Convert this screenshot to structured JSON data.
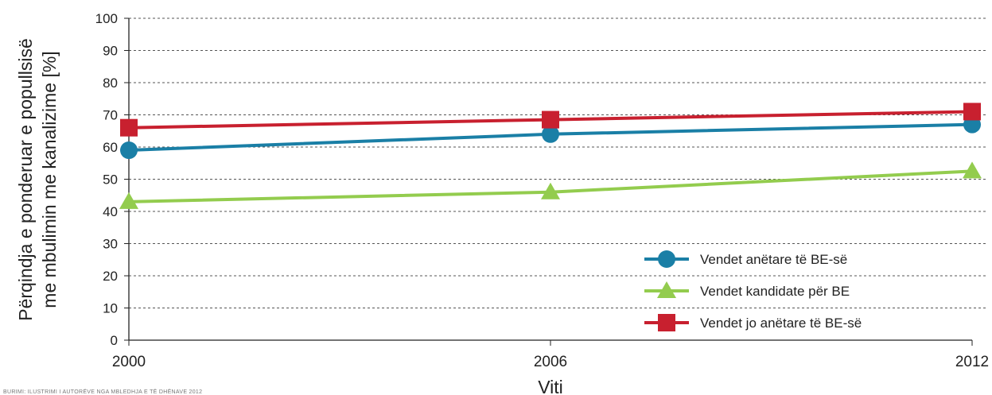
{
  "chart_data": {
    "type": "line",
    "xlabel": "Viti",
    "ylabel_line1": "Përqindja e ponderuar e popullsisë",
    "ylabel_line2": "me mbulimin me kanalizime [%]",
    "x": [
      "2000",
      "2006",
      "2012"
    ],
    "ylim": [
      0,
      100
    ],
    "yticks": [
      "0",
      "10",
      "20",
      "30",
      "40",
      "50",
      "60",
      "70",
      "80",
      "90",
      "100"
    ],
    "grid": "horizontal-dashed",
    "legend_position": "bottom-right",
    "series": [
      {
        "name": "Vendet anëtare të BE-së",
        "values": [
          59,
          64,
          67
        ],
        "color": "#1a7fa6",
        "marker": "circle"
      },
      {
        "name": "Vendet kandidate për BE",
        "values": [
          43,
          46,
          52.5
        ],
        "color": "#93cc4e",
        "marker": "triangle"
      },
      {
        "name": "Vendet jo anëtare të BE-së",
        "values": [
          66,
          68.5,
          71
        ],
        "color": "#c8202f",
        "marker": "square"
      }
    ]
  },
  "footnote": "BURIMI: ILUSTRIMI I AUTORËVE NGA MBLEDHJA E TË DHËNAVE 2012"
}
